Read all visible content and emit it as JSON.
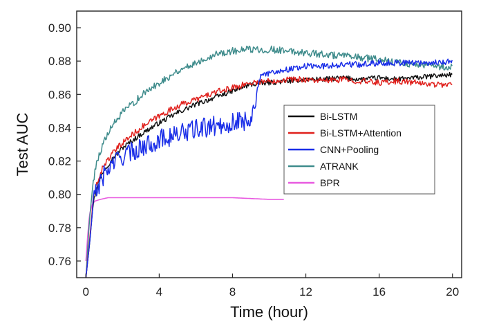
{
  "chart_data": {
    "type": "line",
    "title": "",
    "xlabel": "Time (hour)",
    "ylabel": "Test AUC",
    "xlim": [
      -0.5,
      20.5
    ],
    "ylim": [
      0.75,
      0.91
    ],
    "xticks": [
      0,
      4,
      8,
      12,
      16,
      20
    ],
    "yticks": [
      0.76,
      0.78,
      0.8,
      0.82,
      0.84,
      0.86,
      0.88,
      0.9
    ],
    "grid": false,
    "legend_position": "right",
    "series": [
      {
        "name": "Bi-LSTM",
        "color": "#111111",
        "x": [
          0.0,
          0.2,
          0.4,
          0.6,
          1.0,
          1.5,
          2,
          3,
          4,
          5,
          6,
          7,
          8,
          9,
          10,
          11,
          12,
          13,
          14,
          15,
          16,
          17,
          18,
          19,
          20
        ],
        "y": [
          0.75,
          0.77,
          0.795,
          0.805,
          0.815,
          0.822,
          0.828,
          0.836,
          0.843,
          0.849,
          0.854,
          0.858,
          0.862,
          0.866,
          0.867,
          0.868,
          0.869,
          0.869,
          0.87,
          0.869,
          0.87,
          0.869,
          0.87,
          0.871,
          0.872
        ]
      },
      {
        "name": "Bi-LSTM+Attention",
        "color": "#e0201c",
        "x": [
          0.0,
          0.2,
          0.4,
          0.6,
          1.0,
          1.5,
          2,
          3,
          4,
          5,
          6,
          7,
          8,
          9,
          10,
          11,
          12,
          13,
          14,
          15,
          16,
          17,
          18,
          19,
          20
        ],
        "y": [
          0.75,
          0.772,
          0.797,
          0.807,
          0.818,
          0.825,
          0.831,
          0.84,
          0.847,
          0.853,
          0.857,
          0.861,
          0.864,
          0.867,
          0.868,
          0.869,
          0.869,
          0.868,
          0.869,
          0.868,
          0.867,
          0.868,
          0.867,
          0.866,
          0.866
        ]
      },
      {
        "name": "CNN+Pooling",
        "color": "#1a2ee8",
        "x": [
          0.0,
          0.2,
          0.4,
          0.6,
          1.0,
          1.5,
          2,
          3,
          4,
          5,
          6,
          7,
          8,
          9,
          9.5,
          10,
          11,
          12,
          13,
          14,
          15,
          16,
          17,
          18,
          19,
          20
        ],
        "y": [
          0.75,
          0.77,
          0.795,
          0.803,
          0.812,
          0.819,
          0.823,
          0.828,
          0.833,
          0.836,
          0.839,
          0.841,
          0.843,
          0.845,
          0.87,
          0.873,
          0.875,
          0.877,
          0.877,
          0.878,
          0.878,
          0.879,
          0.879,
          0.879,
          0.879,
          0.88
        ]
      },
      {
        "name": "ATRANK",
        "color": "#3f8c8c",
        "x": [
          0.0,
          0.2,
          0.4,
          0.6,
          1.0,
          1.5,
          2,
          3,
          4,
          5,
          6,
          7,
          8,
          9,
          10,
          11,
          12,
          13,
          14,
          15,
          16,
          17,
          18,
          19,
          20
        ],
        "y": [
          0.75,
          0.785,
          0.808,
          0.82,
          0.832,
          0.842,
          0.849,
          0.859,
          0.867,
          0.874,
          0.879,
          0.884,
          0.886,
          0.887,
          0.887,
          0.886,
          0.885,
          0.884,
          0.883,
          0.882,
          0.881,
          0.879,
          0.878,
          0.877,
          0.876
        ]
      },
      {
        "name": "BPR",
        "color": "#e85ae0",
        "x": [
          0.0,
          0.1,
          0.2,
          0.35,
          0.5,
          0.8,
          1.2,
          2,
          4,
          6,
          8,
          10,
          10.8
        ],
        "y": [
          0.76,
          0.775,
          0.788,
          0.794,
          0.796,
          0.797,
          0.798,
          0.798,
          0.798,
          0.798,
          0.798,
          0.797,
          0.797
        ]
      }
    ]
  }
}
